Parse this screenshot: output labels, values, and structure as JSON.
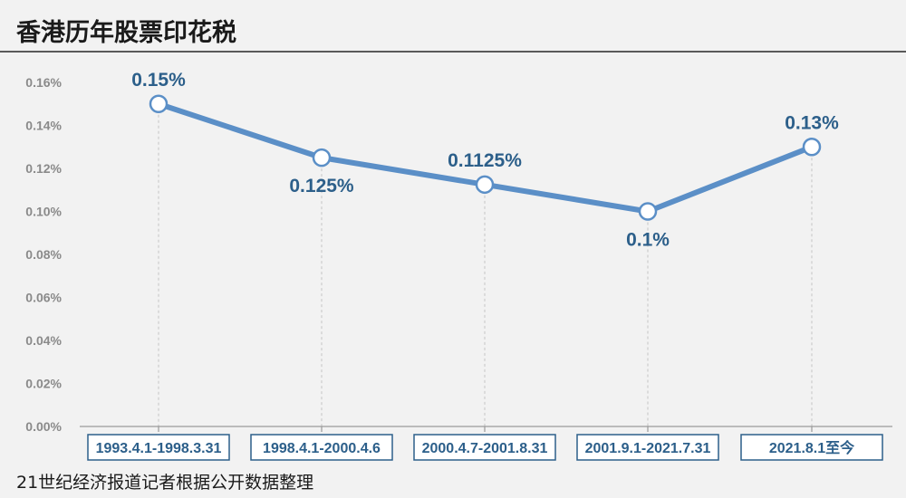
{
  "title": "香港历年股票印花税",
  "source": "21世纪经济报道记者根据公开数据整理",
  "colors": {
    "line": "#5b8fc7",
    "label": "#2c5f8a",
    "axis": "#8a8a8a"
  },
  "chart_data": {
    "type": "line",
    "title": "香港历年股票印花税",
    "categories": [
      "1993.4.1-1998.3.31",
      "1998.4.1-2000.4.6",
      "2000.4.7-2001.8.31",
      "2001.9.1-2021.7.31",
      "2021.8.1至今"
    ],
    "values": [
      0.15,
      0.125,
      0.1125,
      0.1,
      0.13
    ],
    "data_labels": [
      "0.15%",
      "0.125%",
      "0.1125%",
      "0.1%",
      "0.13%"
    ],
    "label_position": [
      "above",
      "below",
      "above",
      "below",
      "above"
    ],
    "yticks": [
      "0.00%",
      "0.02%",
      "0.04%",
      "0.06%",
      "0.08%",
      "0.10%",
      "0.12%",
      "0.14%",
      "0.16%"
    ],
    "ylim": [
      0,
      0.16
    ],
    "grid": "vertical-dashed"
  }
}
